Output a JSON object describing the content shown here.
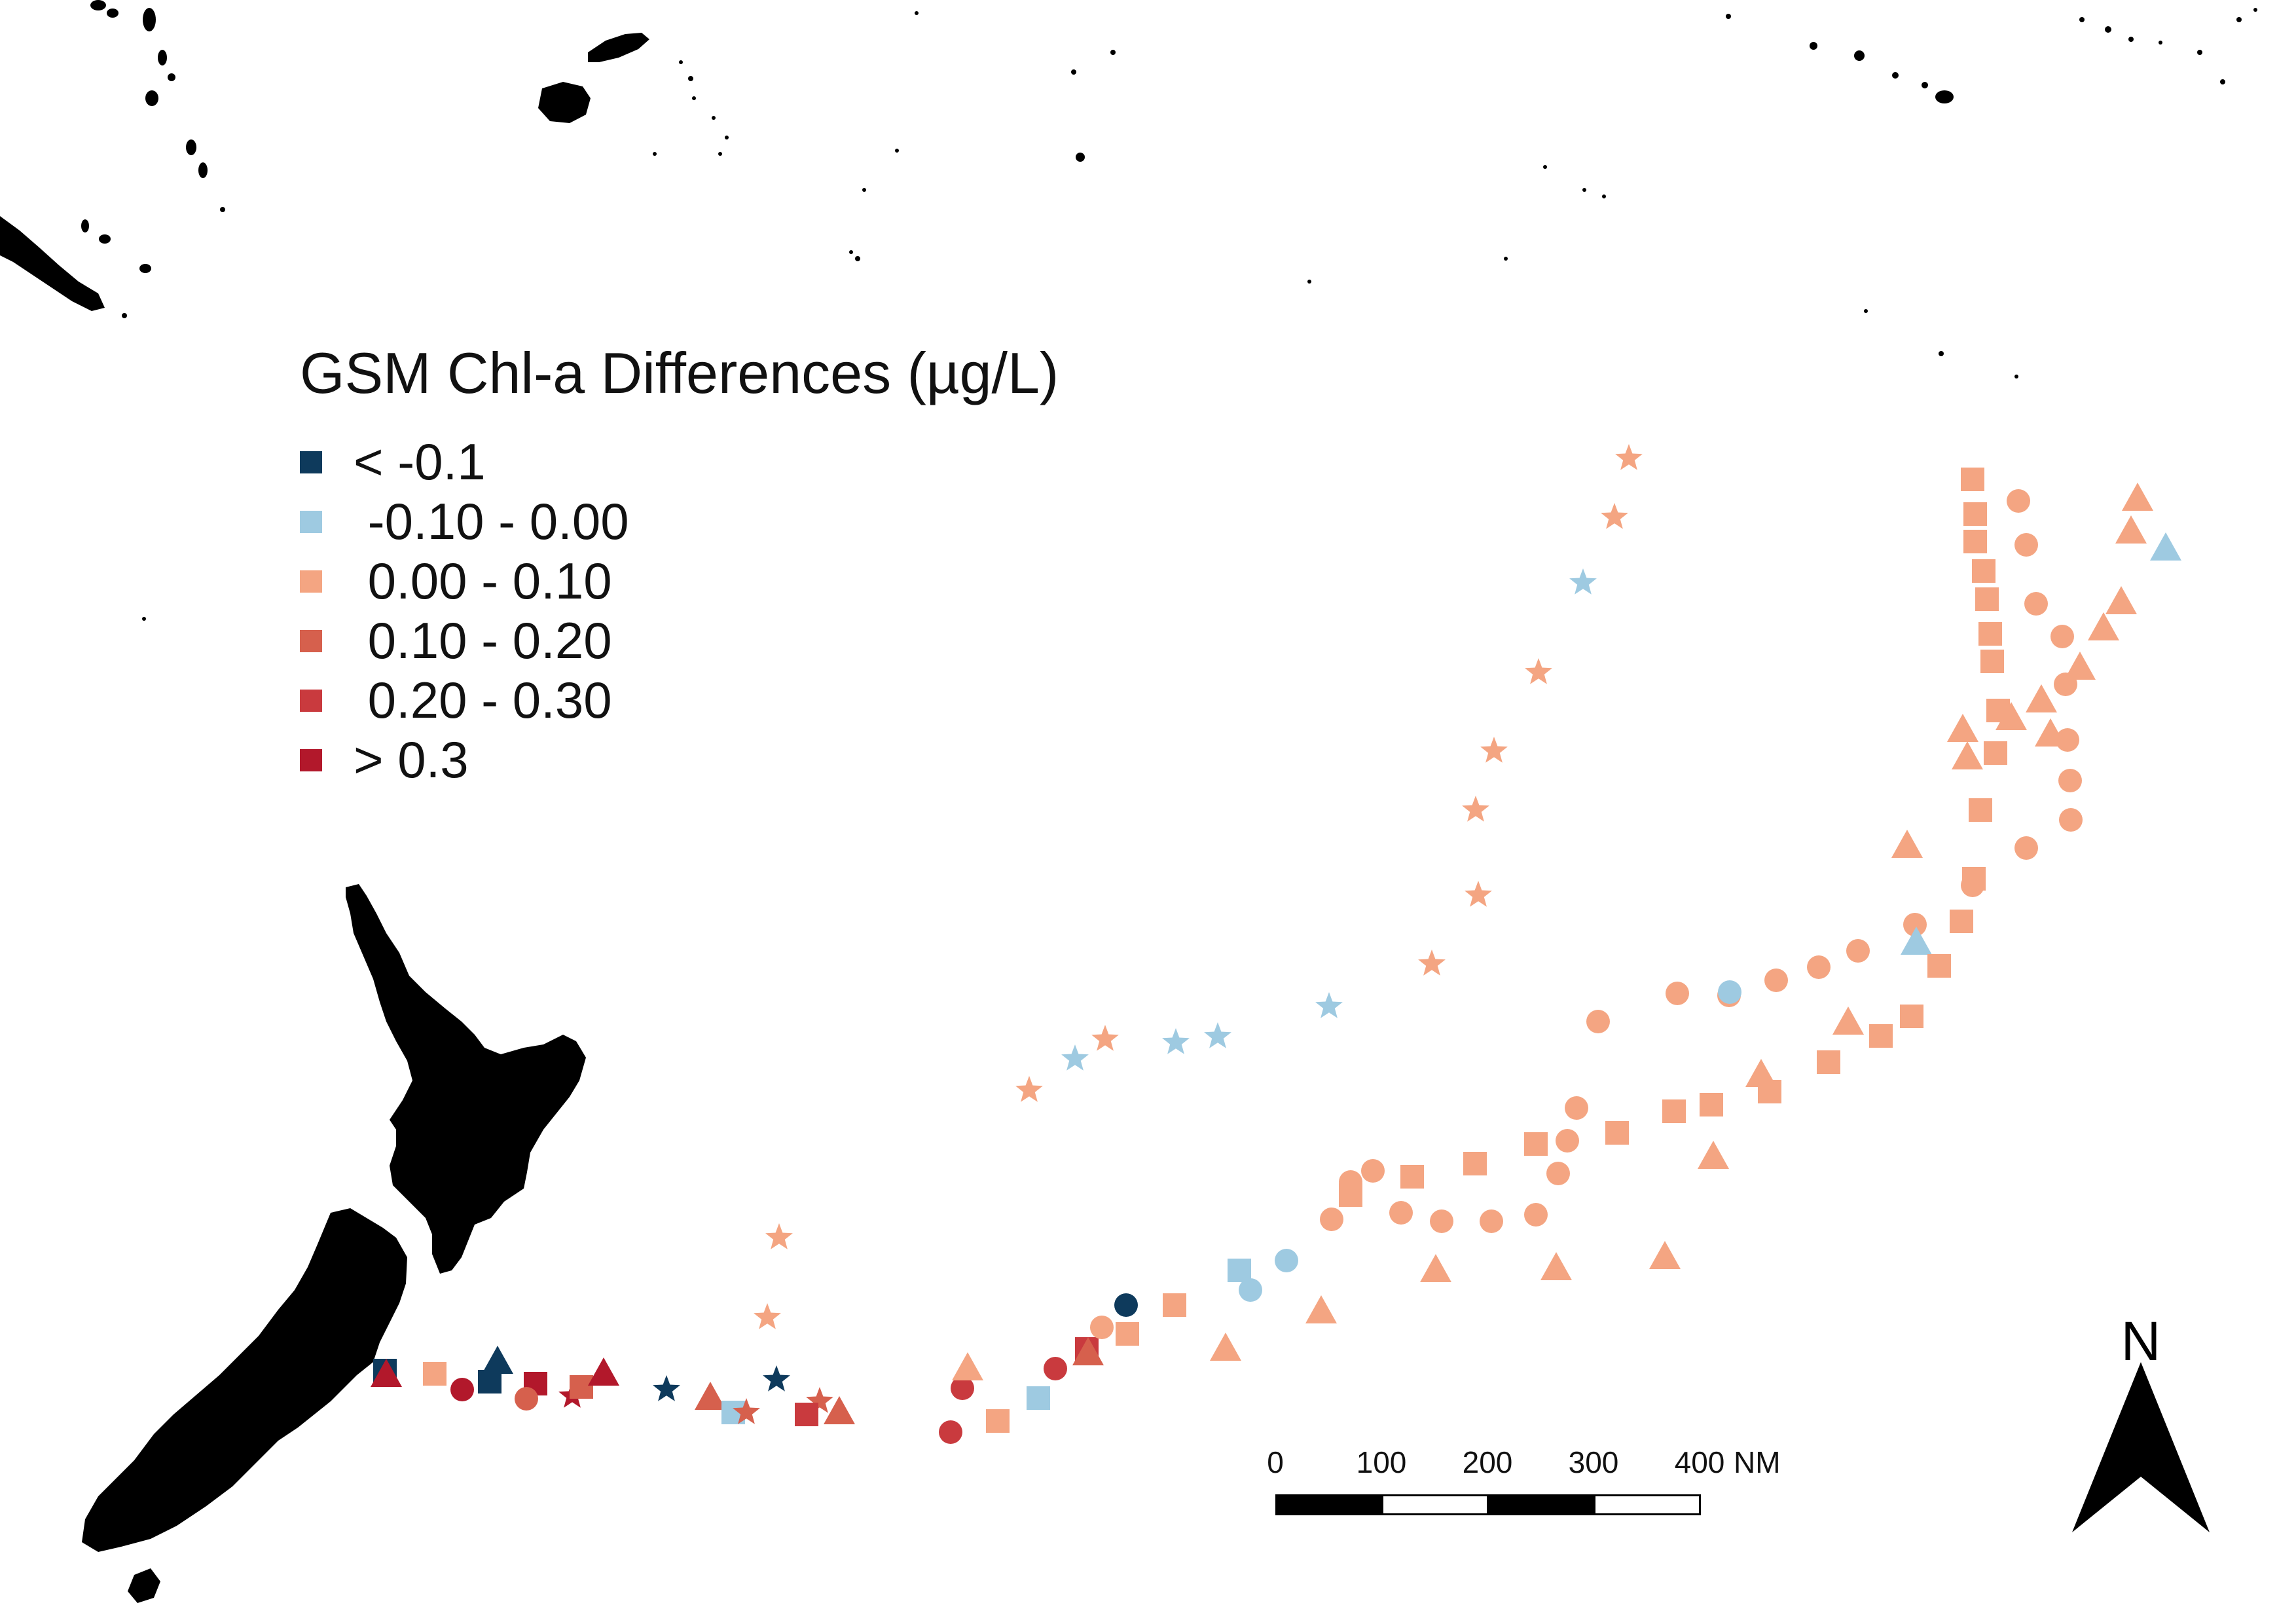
{
  "legend": {
    "title": "GSM Chl-a Differences (µg/L)",
    "classes": [
      {
        "label": "< -0.1",
        "color": "#0e3a5c"
      },
      {
        "label": " -0.10 - 0.00",
        "color": "#9ecae1"
      },
      {
        "label": " 0.00 - 0.10",
        "color": "#f4a582"
      },
      {
        "label": " 0.10 - 0.20",
        "color": "#d6604d"
      },
      {
        "label": " 0.20 - 0.30",
        "color": "#c93a3e"
      },
      {
        "label": "> 0.3",
        "color": "#b2182b"
      }
    ]
  },
  "scalebar": {
    "ticks": [
      "0",
      "100",
      "200",
      "300",
      "400"
    ],
    "unit": "NM"
  },
  "north_arrow": {
    "label": "N"
  },
  "colors": {
    "land": "#000000",
    "water": "#ffffff"
  }
}
